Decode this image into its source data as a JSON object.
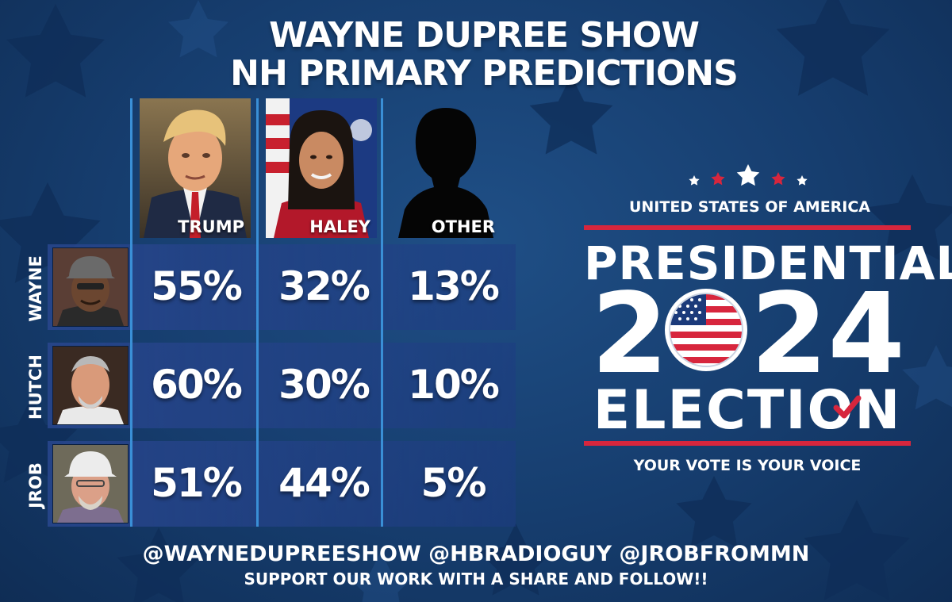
{
  "title": {
    "line1": "WAYNE DUPREE SHOW",
    "line2": "NH PRIMARY PREDICTIONS"
  },
  "candidates": [
    {
      "name": "TRUMP"
    },
    {
      "name": "HALEY"
    },
    {
      "name": "OTHER"
    }
  ],
  "rows": [
    {
      "name": "WAYNE",
      "values": [
        "55%",
        "32%",
        "13%"
      ]
    },
    {
      "name": "HUTCH",
      "values": [
        "60%",
        "30%",
        "10%"
      ]
    },
    {
      "name": "JROB",
      "values": [
        "51%",
        "44%",
        "5%"
      ]
    }
  ],
  "logo": {
    "country": "UNITED STATES OF AMERICA",
    "presidential": "PRESIDENTIAL",
    "year_a": "2",
    "year_b": "24",
    "election": "ELECTION",
    "tagline": "YOUR VOTE IS YOUR VOICE"
  },
  "footer": {
    "handles": "@WAYNEDUPREESHOW @HBRADIOGUY @JROBFROMMN",
    "support": "SUPPORT OUR WORK WITH A SHARE AND FOLLOW!!"
  },
  "colors": {
    "background": "#163d6e",
    "accent_red": "#d7263d",
    "divider_blue": "#3a8fd6"
  }
}
